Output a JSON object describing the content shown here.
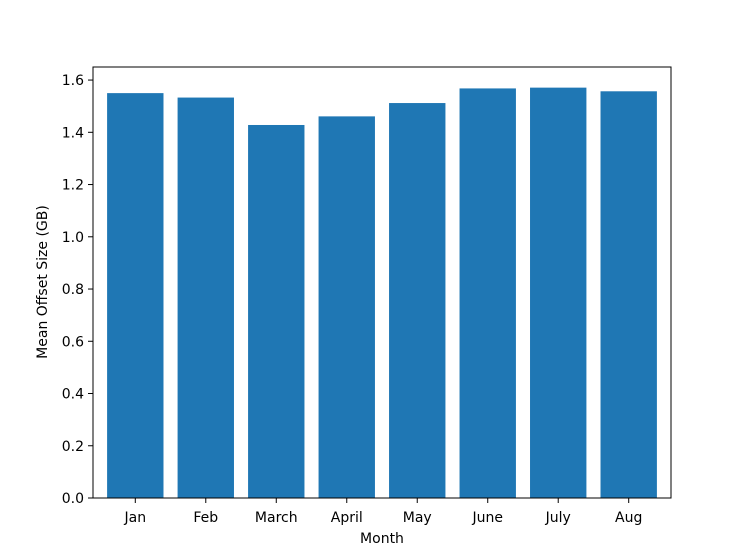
{
  "chart_data": {
    "type": "bar",
    "categories": [
      "Jan",
      "Feb",
      "March",
      "April",
      "May",
      "June",
      "July",
      "Aug"
    ],
    "values": [
      1.55,
      1.533,
      1.428,
      1.461,
      1.512,
      1.568,
      1.571,
      1.557
    ],
    "title": "",
    "xlabel": "Month",
    "ylabel": "Mean Offset Size (GB)",
    "ylim": [
      0,
      1.65
    ],
    "yticks": [
      "0.0",
      "0.2",
      "0.4",
      "0.6",
      "0.8",
      "1.0",
      "1.2",
      "1.4",
      "1.6"
    ],
    "grid": false,
    "bar_color": "#1f77b4"
  }
}
